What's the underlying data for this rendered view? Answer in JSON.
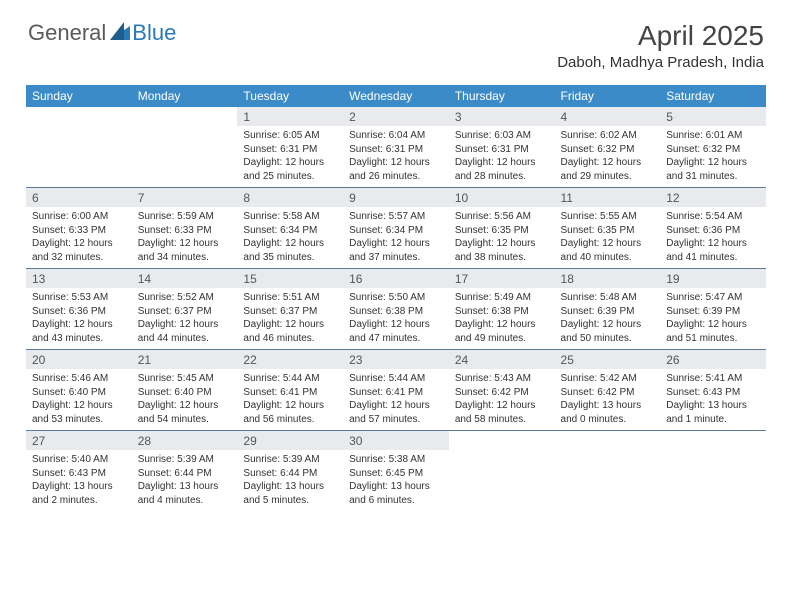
{
  "brand": {
    "part1": "General",
    "part2": "Blue"
  },
  "title": "April 2025",
  "location": "Daboh, Madhya Pradesh, India",
  "day_headers": [
    "Sunday",
    "Monday",
    "Tuesday",
    "Wednesday",
    "Thursday",
    "Friday",
    "Saturday"
  ],
  "colors": {
    "header_bg": "#3b8bc8",
    "daynum_bg": "#e8eaed",
    "rule": "#5a7a95",
    "text": "#333333",
    "brand_grey": "#5a5a5a",
    "brand_blue": "#2a7ab8"
  },
  "weeks": [
    [
      null,
      null,
      {
        "n": "1",
        "sr": "6:05 AM",
        "ss": "6:31 PM",
        "dl": "12 hours and 25 minutes."
      },
      {
        "n": "2",
        "sr": "6:04 AM",
        "ss": "6:31 PM",
        "dl": "12 hours and 26 minutes."
      },
      {
        "n": "3",
        "sr": "6:03 AM",
        "ss": "6:31 PM",
        "dl": "12 hours and 28 minutes."
      },
      {
        "n": "4",
        "sr": "6:02 AM",
        "ss": "6:32 PM",
        "dl": "12 hours and 29 minutes."
      },
      {
        "n": "5",
        "sr": "6:01 AM",
        "ss": "6:32 PM",
        "dl": "12 hours and 31 minutes."
      }
    ],
    [
      {
        "n": "6",
        "sr": "6:00 AM",
        "ss": "6:33 PM",
        "dl": "12 hours and 32 minutes."
      },
      {
        "n": "7",
        "sr": "5:59 AM",
        "ss": "6:33 PM",
        "dl": "12 hours and 34 minutes."
      },
      {
        "n": "8",
        "sr": "5:58 AM",
        "ss": "6:34 PM",
        "dl": "12 hours and 35 minutes."
      },
      {
        "n": "9",
        "sr": "5:57 AM",
        "ss": "6:34 PM",
        "dl": "12 hours and 37 minutes."
      },
      {
        "n": "10",
        "sr": "5:56 AM",
        "ss": "6:35 PM",
        "dl": "12 hours and 38 minutes."
      },
      {
        "n": "11",
        "sr": "5:55 AM",
        "ss": "6:35 PM",
        "dl": "12 hours and 40 minutes."
      },
      {
        "n": "12",
        "sr": "5:54 AM",
        "ss": "6:36 PM",
        "dl": "12 hours and 41 minutes."
      }
    ],
    [
      {
        "n": "13",
        "sr": "5:53 AM",
        "ss": "6:36 PM",
        "dl": "12 hours and 43 minutes."
      },
      {
        "n": "14",
        "sr": "5:52 AM",
        "ss": "6:37 PM",
        "dl": "12 hours and 44 minutes."
      },
      {
        "n": "15",
        "sr": "5:51 AM",
        "ss": "6:37 PM",
        "dl": "12 hours and 46 minutes."
      },
      {
        "n": "16",
        "sr": "5:50 AM",
        "ss": "6:38 PM",
        "dl": "12 hours and 47 minutes."
      },
      {
        "n": "17",
        "sr": "5:49 AM",
        "ss": "6:38 PM",
        "dl": "12 hours and 49 minutes."
      },
      {
        "n": "18",
        "sr": "5:48 AM",
        "ss": "6:39 PM",
        "dl": "12 hours and 50 minutes."
      },
      {
        "n": "19",
        "sr": "5:47 AM",
        "ss": "6:39 PM",
        "dl": "12 hours and 51 minutes."
      }
    ],
    [
      {
        "n": "20",
        "sr": "5:46 AM",
        "ss": "6:40 PM",
        "dl": "12 hours and 53 minutes."
      },
      {
        "n": "21",
        "sr": "5:45 AM",
        "ss": "6:40 PM",
        "dl": "12 hours and 54 minutes."
      },
      {
        "n": "22",
        "sr": "5:44 AM",
        "ss": "6:41 PM",
        "dl": "12 hours and 56 minutes."
      },
      {
        "n": "23",
        "sr": "5:44 AM",
        "ss": "6:41 PM",
        "dl": "12 hours and 57 minutes."
      },
      {
        "n": "24",
        "sr": "5:43 AM",
        "ss": "6:42 PM",
        "dl": "12 hours and 58 minutes."
      },
      {
        "n": "25",
        "sr": "5:42 AM",
        "ss": "6:42 PM",
        "dl": "13 hours and 0 minutes."
      },
      {
        "n": "26",
        "sr": "5:41 AM",
        "ss": "6:43 PM",
        "dl": "13 hours and 1 minute."
      }
    ],
    [
      {
        "n": "27",
        "sr": "5:40 AM",
        "ss": "6:43 PM",
        "dl": "13 hours and 2 minutes."
      },
      {
        "n": "28",
        "sr": "5:39 AM",
        "ss": "6:44 PM",
        "dl": "13 hours and 4 minutes."
      },
      {
        "n": "29",
        "sr": "5:39 AM",
        "ss": "6:44 PM",
        "dl": "13 hours and 5 minutes."
      },
      {
        "n": "30",
        "sr": "5:38 AM",
        "ss": "6:45 PM",
        "dl": "13 hours and 6 minutes."
      },
      null,
      null,
      null
    ]
  ],
  "labels": {
    "sunrise": "Sunrise:",
    "sunset": "Sunset:",
    "daylight": "Daylight:"
  }
}
